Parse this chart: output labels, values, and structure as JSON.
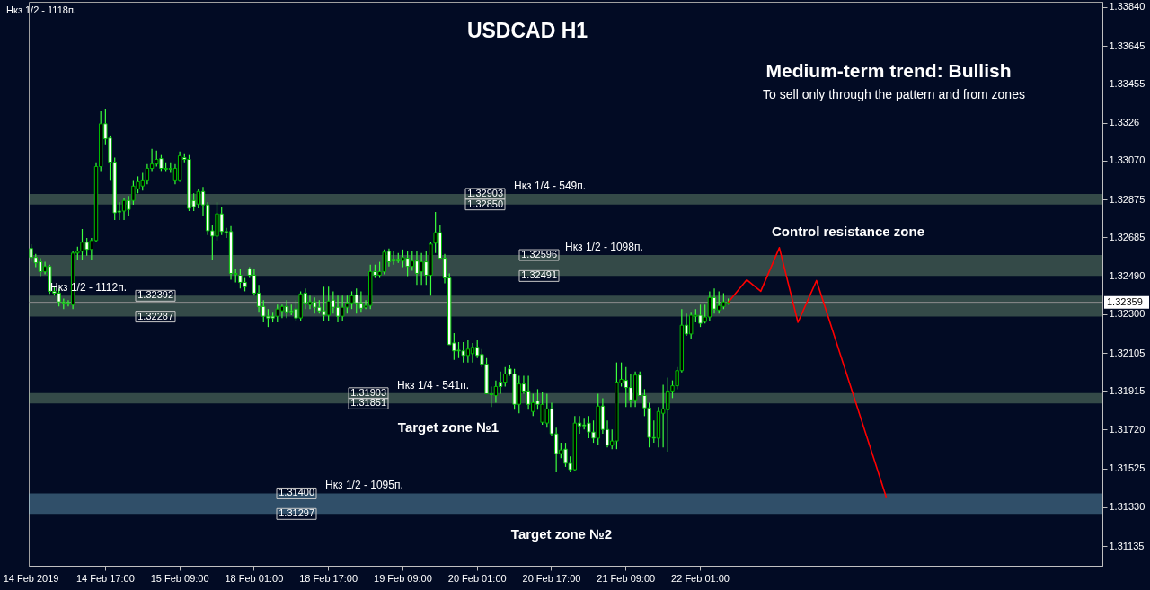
{
  "chart_data": {
    "type": "candlestick",
    "title": "USDCAD H1",
    "annotations": [
      "Нкз 1/2 - 1118п.",
      "Medium-term trend: Bullish",
      "To sell only through the pattern and from zones",
      "Control resistance zone",
      "Target zone №1",
      "Target zone №2",
      {
        "text": "1.32903",
        "y": 1.32903
      },
      {
        "text": "1.32850",
        "y": 1.3285
      },
      {
        "text": "1.32392",
        "y": 1.32392
      },
      {
        "text": "1.32287",
        "y": 1.32287
      },
      {
        "text": "1.31903",
        "y": 1.31903
      },
      {
        "text": "1.31851",
        "y": 1.31851
      },
      {
        "text": "1.31400",
        "y": 1.314
      },
      {
        "text": "1.31297",
        "y": 1.31297
      },
      {
        "text": "1.32596",
        "y": 1.32596
      },
      {
        "text": "1.32491",
        "y": 1.32491
      }
    ],
    "categories": [
      "14 Feb 2019",
      null,
      null,
      null,
      null,
      null,
      null,
      null,
      null,
      null,
      null,
      null,
      null,
      null,
      null,
      null,
      "14 Feb 17:00",
      null,
      null,
      null,
      null,
      null,
      null,
      null,
      null,
      null,
      null,
      null,
      null,
      null,
      null,
      null,
      "15 Feb 09:00",
      null,
      null,
      null,
      null,
      null,
      null,
      null,
      null,
      null,
      null,
      null,
      null,
      null,
      null,
      null,
      "18 Feb 01:00",
      null,
      null,
      null,
      null,
      null,
      null,
      null,
      null,
      null,
      null,
      null,
      null,
      null,
      null,
      null,
      "18 Feb 17:00",
      null,
      null,
      null,
      null,
      null,
      null,
      null,
      null,
      null,
      null,
      null,
      null,
      null,
      null,
      null,
      "19 Feb 09:00",
      null,
      null,
      null,
      null,
      null,
      null,
      null,
      null,
      null,
      null,
      null,
      null,
      null,
      null,
      null,
      "20 Feb 01:00",
      null,
      null,
      null,
      null,
      null,
      null,
      null,
      null,
      null,
      null,
      null,
      null,
      null,
      null,
      null,
      "20 Feb 17:00",
      null,
      null,
      null,
      null,
      null,
      null,
      null,
      null,
      null,
      null,
      null,
      null,
      null,
      null,
      null,
      "21 Feb 09:00",
      null,
      null,
      null,
      null,
      null,
      null,
      null,
      null,
      null,
      null,
      null,
      null,
      null,
      null,
      null,
      "22 Feb 01:00",
      null,
      null,
      null,
      null,
      null,
      null,
      null,
      null,
      null,
      null,
      null,
      null,
      null,
      null,
      null,
      null,
      null,
      null,
      null,
      null,
      null,
      null,
      null,
      null,
      null,
      null,
      null,
      null,
      null,
      null,
      null,
      null,
      null,
      null,
      null,
      null,
      null,
      null,
      null,
      null,
      null,
      null,
      null,
      null,
      null,
      null,
      null,
      null,
      null,
      null,
      null,
      null,
      null,
      null,
      null,
      null,
      null,
      null,
      null,
      null,
      null,
      null,
      null,
      null,
      null,
      null,
      null,
      null,
      null,
      null,
      null,
      null,
      null,
      null,
      null,
      null,
      null,
      null,
      null,
      null,
      null,
      null,
      null,
      null,
      null,
      null
    ],
    "ohlc": [
      [
        1.32629,
        1.32651,
        1.32562,
        1.32584
      ],
      [
        1.32584,
        1.32602,
        1.32535,
        1.32557
      ],
      [
        1.32562,
        1.3258,
        1.3249,
        1.32513
      ],
      [
        1.32513,
        1.32562,
        1.32499,
        1.32539
      ],
      [
        1.32539,
        1.32548,
        1.32401,
        1.32414
      ],
      [
        1.32414,
        1.32437,
        1.32392,
        1.32405
      ],
      [
        1.32405,
        1.32428,
        1.32338,
        1.32361
      ],
      [
        1.32361,
        1.32378,
        1.32325,
        1.32356
      ],
      [
        1.32356,
        1.3237,
        1.32338,
        1.32352
      ],
      [
        1.32347,
        1.32615,
        1.32325,
        1.32606
      ],
      [
        1.32606,
        1.32638,
        1.32571,
        1.32615
      ],
      [
        1.32615,
        1.32727,
        1.32571,
        1.3266
      ],
      [
        1.3266,
        1.32682,
        1.32593,
        1.32624
      ],
      [
        1.32624,
        1.32682,
        1.32571,
        1.32669
      ],
      [
        1.32669,
        1.33062,
        1.3266,
        1.3304
      ],
      [
        1.3304,
        1.33317,
        1.33018,
        1.33255
      ],
      [
        1.33255,
        1.33331,
        1.33152,
        1.33179
      ],
      [
        1.33183,
        1.33196,
        1.32973,
        1.33062
      ],
      [
        1.33062,
        1.33085,
        1.32772,
        1.32808
      ],
      [
        1.32817,
        1.32861,
        1.32772,
        1.32812
      ],
      [
        1.32817,
        1.32884,
        1.32772,
        1.3287
      ],
      [
        1.3287,
        1.32893,
        1.32794,
        1.32825
      ],
      [
        1.3287,
        1.32973,
        1.32848,
        1.32942
      ],
      [
        1.32928,
        1.32991,
        1.32906,
        1.32964
      ],
      [
        1.32942,
        1.33009,
        1.32919,
        1.32973
      ],
      [
        1.32973,
        1.33053,
        1.32951,
        1.33031
      ],
      [
        1.33031,
        1.33129,
        1.33018,
        1.33053
      ],
      [
        1.33053,
        1.3312,
        1.3304,
        1.33076
      ],
      [
        1.3308,
        1.33098,
        1.33018,
        1.33031
      ],
      [
        1.33031,
        1.33062,
        1.33018,
        1.33027
      ],
      [
        1.33031,
        1.33062,
        1.33009,
        1.33027
      ],
      [
        1.32973,
        1.33053,
        1.32951,
        1.33031
      ],
      [
        1.32973,
        1.33116,
        1.32964,
        1.33094
      ],
      [
        1.33085,
        1.33107,
        1.33062,
        1.33076
      ],
      [
        1.33076,
        1.33098,
        1.32817,
        1.3283
      ],
      [
        1.3287,
        1.32906,
        1.32817,
        1.32839
      ],
      [
        1.32852,
        1.32928,
        1.3283,
        1.32915
      ],
      [
        1.32915,
        1.32937,
        1.32794,
        1.32848
      ],
      [
        1.32848,
        1.32861,
        1.32696,
        1.32718
      ],
      [
        1.32718,
        1.32749,
        1.32571,
        1.32691
      ],
      [
        1.32691,
        1.32861,
        1.32669,
        1.32803
      ],
      [
        1.32803,
        1.32839,
        1.32696,
        1.32714
      ],
      [
        1.32714,
        1.32732,
        1.32682,
        1.32709
      ],
      [
        1.32714,
        1.32741,
        1.32472,
        1.32504
      ],
      [
        1.32504,
        1.32526,
        1.32459,
        1.32499
      ],
      [
        1.32495,
        1.32526,
        1.32428,
        1.32459
      ],
      [
        1.32459,
        1.32481,
        1.32414,
        1.32437
      ],
      [
        1.32526,
        1.32535,
        1.32481,
        1.32495
      ],
      [
        1.32495,
        1.32526,
        1.32392,
        1.32405
      ],
      [
        1.32405,
        1.32446,
        1.32311,
        1.32338
      ],
      [
        1.32338,
        1.3237,
        1.32258,
        1.32289
      ],
      [
        1.32289,
        1.32325,
        1.32235,
        1.3228
      ],
      [
        1.32289,
        1.32311,
        1.32258,
        1.3228
      ],
      [
        1.32289,
        1.32347,
        1.32258,
        1.32325
      ],
      [
        1.32316,
        1.32347,
        1.3228,
        1.32338
      ],
      [
        1.32338,
        1.3237,
        1.3228,
        1.32311
      ],
      [
        1.32316,
        1.32347,
        1.32294,
        1.32311
      ],
      [
        1.32325,
        1.3237,
        1.32267,
        1.3228
      ],
      [
        1.3228,
        1.32414,
        1.32267,
        1.32401
      ],
      [
        1.32405,
        1.32428,
        1.32325,
        1.32356
      ],
      [
        1.32347,
        1.32392,
        1.32325,
        1.32361
      ],
      [
        1.32361,
        1.32383,
        1.32302,
        1.32334
      ],
      [
        1.32334,
        1.3237,
        1.32302,
        1.32316
      ],
      [
        1.32316,
        1.32437,
        1.32267,
        1.32294
      ],
      [
        1.32294,
        1.32437,
        1.32267,
        1.32365
      ],
      [
        1.3237,
        1.32414,
        1.32302,
        1.32334
      ],
      [
        1.32334,
        1.32392,
        1.32258,
        1.32289
      ],
      [
        1.32289,
        1.32392,
        1.32267,
        1.32334
      ],
      [
        1.32334,
        1.32392,
        1.32302,
        1.32356
      ],
      [
        1.32356,
        1.32414,
        1.32325,
        1.32392
      ],
      [
        1.32396,
        1.32428,
        1.32302,
        1.32356
      ],
      [
        1.32356,
        1.32414,
        1.32311,
        1.32329
      ],
      [
        1.32334,
        1.3237,
        1.32325,
        1.32343
      ],
      [
        1.32343,
        1.32548,
        1.32325,
        1.32513
      ],
      [
        1.32513,
        1.32548,
        1.32481,
        1.32495
      ],
      [
        1.32495,
        1.32562,
        1.32481,
        1.32513
      ],
      [
        1.32513,
        1.32624,
        1.32499,
        1.32611
      ],
      [
        1.32615,
        1.32629,
        1.32539,
        1.32562
      ],
      [
        1.32575,
        1.32615,
        1.32548,
        1.32566
      ],
      [
        1.32575,
        1.32606,
        1.32557,
        1.32566
      ],
      [
        1.32566,
        1.32624,
        1.32535,
        1.32584
      ],
      [
        1.3258,
        1.32615,
        1.3249,
        1.32539
      ],
      [
        1.32539,
        1.32615,
        1.32517,
        1.32566
      ],
      [
        1.32566,
        1.32615,
        1.32446,
        1.32504
      ],
      [
        1.32513,
        1.32606,
        1.32446,
        1.32562
      ],
      [
        1.32562,
        1.32615,
        1.32446,
        1.32495
      ],
      [
        1.32495,
        1.3266,
        1.32392,
        1.32651
      ],
      [
        1.32656,
        1.32812,
        1.32606,
        1.32709
      ],
      [
        1.32709,
        1.32749,
        1.3258,
        1.3258
      ],
      [
        1.3258,
        1.32602,
        1.32454,
        1.32481
      ],
      [
        1.32481,
        1.32504,
        1.32146,
        1.32146
      ],
      [
        1.32155,
        1.32204,
        1.3207,
        1.32115
      ],
      [
        1.32119,
        1.32159,
        1.32079,
        1.32115
      ],
      [
        1.32115,
        1.32159,
        1.32057,
        1.32092
      ],
      [
        1.32092,
        1.32168,
        1.32057,
        1.32124
      ],
      [
        1.32101,
        1.32155,
        1.32057,
        1.32133
      ],
      [
        1.32133,
        1.32168,
        1.32079,
        1.32092
      ],
      [
        1.32097,
        1.32124,
        1.32034,
        1.32048
      ],
      [
        1.32048,
        1.32079,
        1.319,
        1.319
      ],
      [
        1.319,
        1.31936,
        1.31833,
        1.31896
      ],
      [
        1.31891,
        1.31967,
        1.31855,
        1.31936
      ],
      [
        1.31958,
        1.32012,
        1.319,
        1.31936
      ],
      [
        1.31958,
        1.32034,
        1.31936,
        1.31999
      ],
      [
        1.32025,
        1.32043,
        1.3199,
        1.31999
      ],
      [
        1.31999,
        1.32025,
        1.3182,
        1.31847
      ],
      [
        1.31847,
        1.3199,
        1.31802,
        1.31949
      ],
      [
        1.31949,
        1.3199,
        1.319,
        1.31914
      ],
      [
        1.31914,
        1.3199,
        1.3182,
        1.31847
      ],
      [
        1.31811,
        1.319,
        1.31788,
        1.31855
      ],
      [
        1.31864,
        1.31923,
        1.3182,
        1.31847
      ],
      [
        1.31757,
        1.31909,
        1.31744,
        1.31847
      ],
      [
        1.31753,
        1.319,
        1.3173,
        1.31824
      ],
      [
        1.31824,
        1.31855,
        1.31686,
        1.31699
      ],
      [
        1.31699,
        1.3173,
        1.31506,
        1.316
      ],
      [
        1.316,
        1.31654,
        1.31577,
        1.31618
      ],
      [
        1.31622,
        1.31654,
        1.31533,
        1.31551
      ],
      [
        1.31551,
        1.31586,
        1.31506,
        1.31519
      ],
      [
        1.31519,
        1.31788,
        1.3151,
        1.31753
      ],
      [
        1.31753,
        1.31788,
        1.31699,
        1.31739
      ],
      [
        1.31744,
        1.31775,
        1.31721,
        1.31739
      ],
      [
        1.31753,
        1.31788,
        1.31677,
        1.31708
      ],
      [
        1.31708,
        1.31766,
        1.31654,
        1.31677
      ],
      [
        1.31677,
        1.319,
        1.31641,
        1.31838
      ],
      [
        1.31838,
        1.31878,
        1.31699,
        1.31721
      ],
      [
        1.31721,
        1.31766,
        1.31631,
        1.31641
      ],
      [
        1.31641,
        1.31721,
        1.31622,
        1.31663
      ],
      [
        1.31663,
        1.32057,
        1.31622,
        1.31958
      ],
      [
        1.31954,
        1.32057,
        1.31936,
        1.31972
      ],
      [
        1.31967,
        1.32034,
        1.31833,
        1.31931
      ],
      [
        1.31931,
        1.31999,
        1.31833,
        1.31869
      ],
      [
        1.31869,
        1.32012,
        1.31833,
        1.31994
      ],
      [
        1.31994,
        1.32012,
        1.31891,
        1.31891
      ],
      [
        1.31891,
        1.31923,
        1.31788,
        1.31829
      ],
      [
        1.31829,
        1.31855,
        1.31631,
        1.31681
      ],
      [
        1.31681,
        1.31766,
        1.31654,
        1.31677
      ],
      [
        1.31677,
        1.31833,
        1.31631,
        1.31811
      ],
      [
        1.31802,
        1.31945,
        1.31631,
        1.31824
      ],
      [
        1.3182,
        1.31981,
        1.31609,
        1.31914
      ],
      [
        1.31914,
        1.31967,
        1.31878,
        1.3194
      ],
      [
        1.3194,
        1.32034,
        1.31923,
        1.32016
      ],
      [
        1.32016,
        1.32325,
        1.32007,
        1.32244
      ],
      [
        1.32244,
        1.32302,
        1.32191,
        1.322
      ],
      [
        1.322,
        1.32311,
        1.32177,
        1.32294
      ],
      [
        1.32289,
        1.32325,
        1.32258,
        1.32294
      ],
      [
        1.32294,
        1.32347,
        1.32235,
        1.32253
      ],
      [
        1.32262,
        1.32347,
        1.32253,
        1.32285
      ],
      [
        1.32285,
        1.32414,
        1.32267,
        1.32383
      ],
      [
        1.32383,
        1.32428,
        1.32302,
        1.32325
      ],
      [
        1.3232,
        1.32414,
        1.32302,
        1.32343
      ],
      [
        1.32338,
        1.32405,
        1.32325,
        1.32361
      ],
      [
        1.32356,
        1.32378,
        1.32347,
        1.32359
      ],
      null,
      null,
      null,
      null,
      null,
      null,
      null,
      null,
      null,
      null,
      null,
      null,
      null,
      null,
      null,
      null,
      null,
      null,
      null,
      null,
      null,
      null,
      null,
      null,
      null,
      null,
      null,
      null,
      null,
      null,
      null,
      null,
      null,
      null,
      null,
      null,
      null,
      null,
      null,
      null,
      null,
      null,
      null,
      null,
      null,
      null,
      null,
      null,
      null,
      null,
      null,
      null,
      null,
      null,
      null,
      null,
      null,
      null,
      null,
      null,
      null,
      null,
      null,
      null,
      null,
      null,
      null,
      null,
      null,
      null,
      null,
      null,
      null,
      null,
      null,
      null,
      null,
      null,
      null,
      null
    ],
    "series": [
      {
        "type": "line",
        "color": "#ff0000",
        "values": [
          null,
          null,
          null,
          null,
          null,
          null,
          null,
          null,
          null,
          null,
          null,
          null,
          null,
          null,
          null,
          null,
          null,
          null,
          null,
          null,
          null,
          null,
          null,
          null,
          null,
          null,
          null,
          null,
          null,
          null,
          null,
          null,
          null,
          null,
          null,
          null,
          null,
          null,
          null,
          null,
          null,
          null,
          null,
          null,
          null,
          null,
          null,
          null,
          null,
          null,
          null,
          null,
          null,
          null,
          null,
          null,
          null,
          null,
          null,
          null,
          null,
          null,
          null,
          null,
          null,
          null,
          null,
          null,
          null,
          null,
          null,
          null,
          null,
          null,
          null,
          null,
          null,
          null,
          null,
          null,
          null,
          null,
          null,
          null,
          null,
          null,
          null,
          null,
          null,
          null,
          null,
          null,
          null,
          null,
          null,
          null,
          null,
          null,
          null,
          null,
          null,
          null,
          null,
          null,
          null,
          null,
          null,
          null,
          null,
          null,
          null,
          null,
          null,
          null,
          null,
          null,
          null,
          null,
          null,
          null,
          null,
          null,
          null,
          null,
          null,
          null,
          null,
          null,
          null,
          null,
          null,
          null,
          null,
          null,
          null,
          null,
          null,
          null,
          null,
          null,
          null,
          null,
          null,
          null,
          null,
          null,
          null,
          null,
          null,
          null,
          1.32359,
          null,
          null,
          null,
          1.32472,
          null,
          null,
          1.32414,
          null,
          null,
          null,
          1.32633,
          null,
          null,
          null,
          1.32258,
          null,
          null,
          null,
          1.32468,
          null,
          null,
          null,
          null,
          null,
          null,
          null,
          null,
          null,
          null,
          null,
          null,
          null,
          null,
          1.31381,
          null,
          null,
          null,
          null,
          null,
          null,
          null,
          null,
          null,
          null,
          null,
          null,
          null,
          null,
          null,
          null,
          null,
          null,
          null,
          null,
          null,
          null,
          null,
          null,
          null,
          null,
          null,
          null,
          null,
          null,
          null,
          null,
          null,
          null,
          null,
          null,
          null,
          null,
          null,
          null,
          null,
          null,
          null,
          null,
          null,
          null
        ]
      }
    ],
    "ylim": [
      1.31037,
      1.33867
    ],
    "yticks": [
      1.31135,
      {
        "value": 1.3133,
        "label": "1.31330"
      },
      1.31525,
      {
        "value": 1.3172,
        "label": "1.31720"
      },
      1.31915,
      1.32105,
      {
        "value": 1.323,
        "label": "1.32300"
      },
      {
        "value": 1.3249,
        "label": "1.32490"
      },
      1.32685,
      1.32875,
      {
        "value": 1.3307,
        "label": "1.33070"
      },
      1.3326,
      1.33455,
      1.33645,
      {
        "value": 1.3384,
        "label": "1.33840"
      }
    ],
    "bands": [
      {
        "axis": "y",
        "from": 1.3285,
        "to": 1.32903,
        "label": "Нкз 1/4 - 549п.",
        "color": "#93c08d"
      },
      {
        "axis": "y",
        "from": 1.32287,
        "to": 1.32392,
        "label": "Нкз 1/2 - 1112п.",
        "color": "#93c08d"
      },
      {
        "axis": "y",
        "from": 1.31851,
        "to": 1.31903,
        "label": "Нкз 1/4 - 541п.",
        "color": "#93c08d"
      },
      {
        "axis": "y",
        "from": 1.31297,
        "to": 1.314,
        "label": "Нкз 1/2 - 1095п.",
        "color": "#87ceeb"
      },
      {
        "axis": "y",
        "from": 1.32491,
        "to": 1.32596,
        "label": "Нкз 1/2 - 1098п.",
        "color": "#93c08d"
      }
    ],
    "ref_lines": [
      {
        "axis": "y",
        "value": 1.32359,
        "label": "1.32359",
        "color": "#8c8c8c"
      }
    ]
  }
}
